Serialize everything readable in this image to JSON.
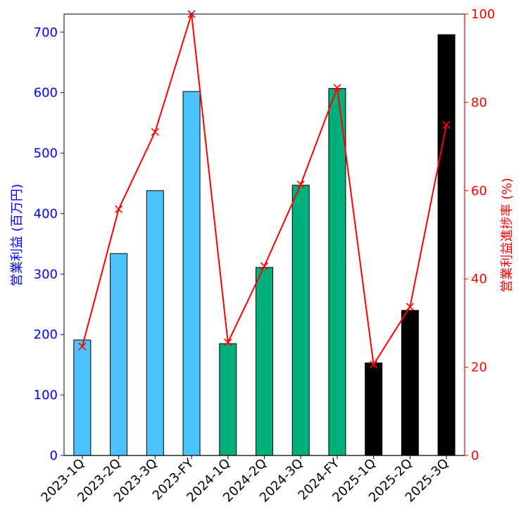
{
  "chart_data": {
    "type": "bar",
    "categories": [
      "2023-1Q",
      "2023-2Q",
      "2023-3Q",
      "2023-FY",
      "2024-1Q",
      "2024-2Q",
      "2024-3Q",
      "2024-FY",
      "2025-1Q",
      "2025-2Q",
      "2025-3Q"
    ],
    "series": [
      {
        "type": "bar",
        "axis": "left",
        "values": [
          191,
          334,
          438,
          602,
          185,
          311,
          447,
          607,
          153,
          240,
          696
        ],
        "colors": [
          "#4cc3ff",
          "#4cc3ff",
          "#4cc3ff",
          "#4cc3ff",
          "#00b07c",
          "#00b07c",
          "#00b07c",
          "#00b07c",
          "#000000",
          "#000000",
          "#000000"
        ]
      },
      {
        "type": "line",
        "axis": "right",
        "marker": "x",
        "color": "#ff0000",
        "values": [
          24.7,
          55.8,
          73.3,
          100.0,
          25.6,
          42.9,
          61.4,
          83.3,
          20.6,
          33.7,
          74.9
        ]
      }
    ],
    "ylabel": "営業利益 (百万円)",
    "ylabel_right": "営業利益進捗率 (%)",
    "xlabel": "",
    "ylim": [
      0,
      730
    ],
    "ylim_right": [
      0,
      100
    ],
    "yticks": [
      0,
      100,
      200,
      300,
      400,
      500,
      600,
      700
    ],
    "yticks_right": [
      0,
      20,
      40,
      60,
      80,
      100
    ],
    "left_axis_color": "#0000ff",
    "right_axis_color": "#ff0000",
    "grid": false
  }
}
